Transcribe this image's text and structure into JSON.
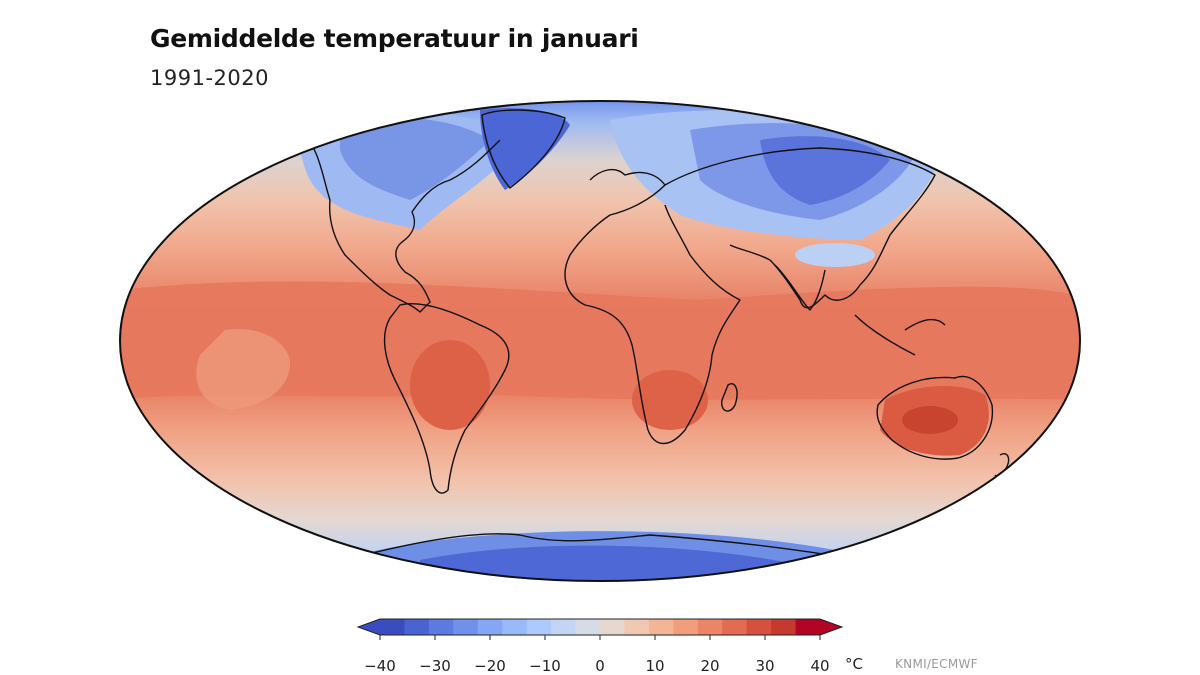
{
  "title": "Gemiddelde temperatuur in januari",
  "subtitle": "1991-2020",
  "colorbar": {
    "ticks": [
      "−40",
      "−30",
      "−20",
      "−10",
      "0",
      "10",
      "20",
      "30",
      "40"
    ],
    "unit": "°C",
    "min": -40,
    "max": 40,
    "colors": [
      "#3b4cc0",
      "#4a63d3",
      "#5b7be0",
      "#6f91ec",
      "#84a6f5",
      "#98b9fa",
      "#aec9fc",
      "#c2d5f4",
      "#d6dce6",
      "#e6d8cf",
      "#f1c8b2",
      "#f4b597",
      "#f29e7d",
      "#ec8565",
      "#e26b50",
      "#d5513d",
      "#c43a2f",
      "#b40426"
    ]
  },
  "credit": "KNMI/ECMWF",
  "map": {
    "projection": "mollweide",
    "variable": "mean January temperature"
  }
}
